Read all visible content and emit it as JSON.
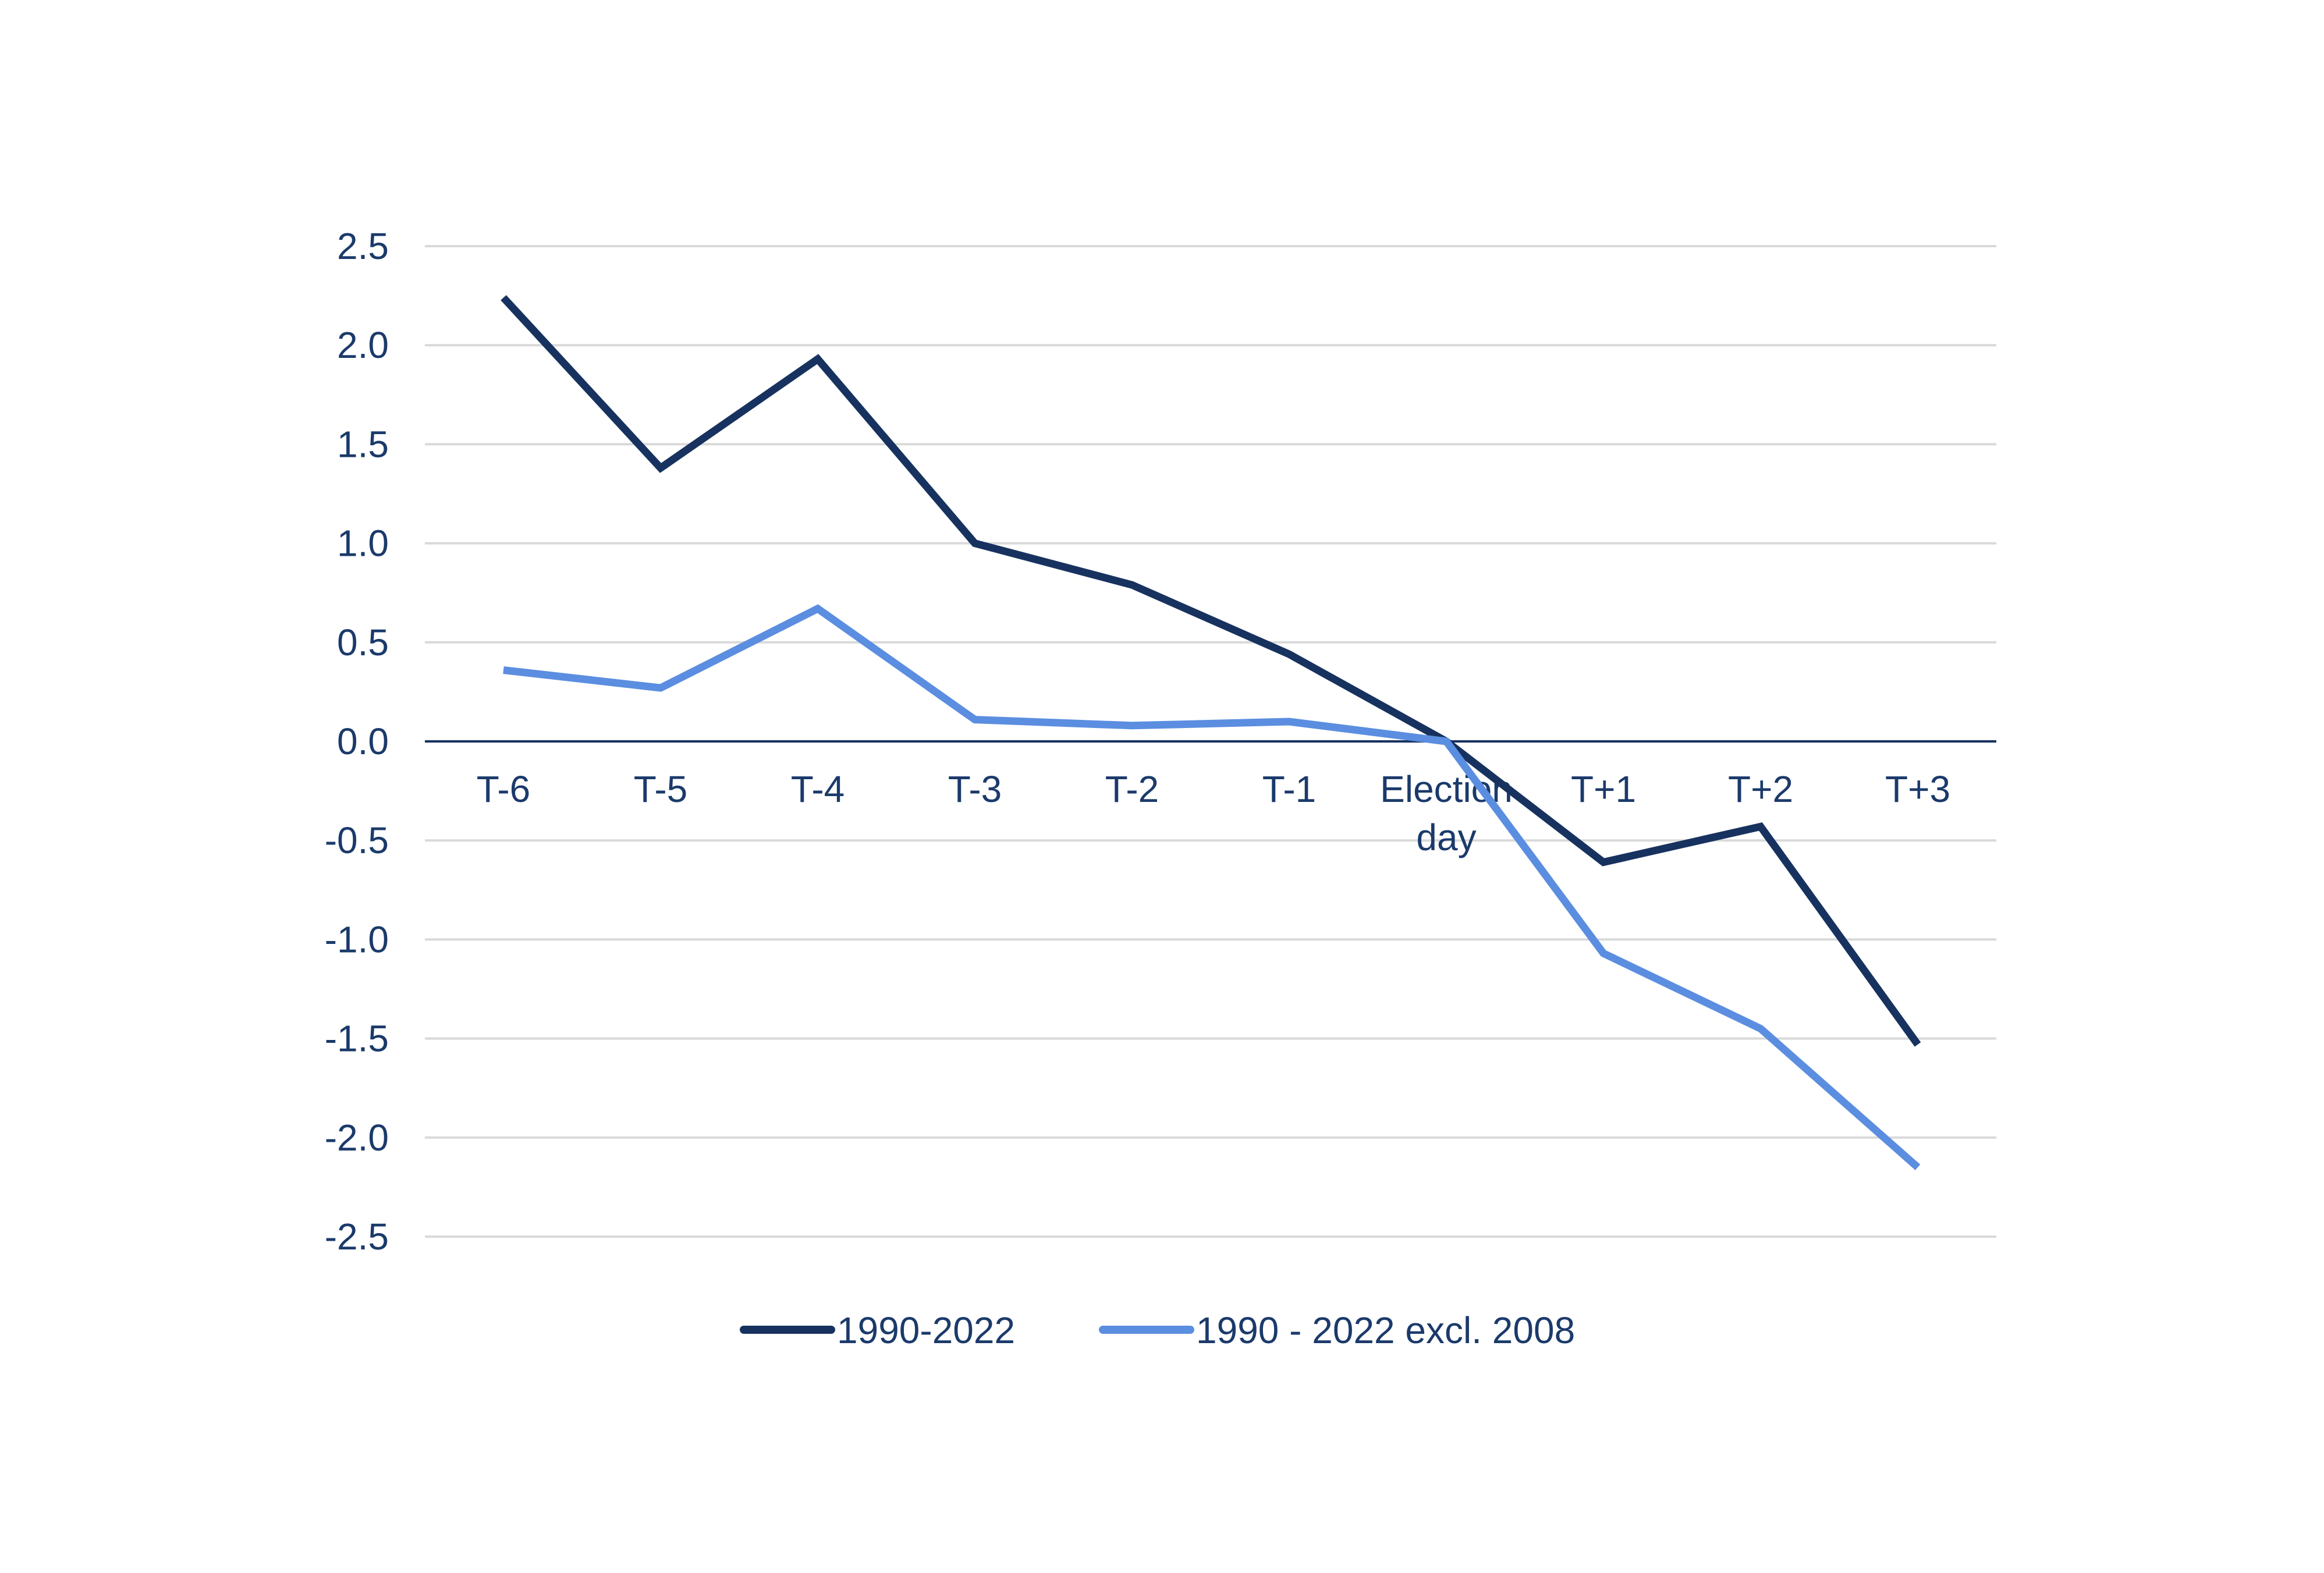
{
  "chart_data": {
    "type": "line",
    "title": "",
    "xlabel": "",
    "ylabel": "",
    "categories": [
      "T-6",
      "T-5",
      "T-4",
      "T-3",
      "T-2",
      "T-1",
      "Election day",
      "T+1",
      "T+2",
      "T+3"
    ],
    "category_lines": [
      [
        "T-6"
      ],
      [
        "T-5"
      ],
      [
        "T-4"
      ],
      [
        "T-3"
      ],
      [
        "T-2"
      ],
      [
        "T-1"
      ],
      [
        "Election",
        "day"
      ],
      [
        "T+1"
      ],
      [
        "T+2"
      ],
      [
        "T+3"
      ]
    ],
    "ylim": [
      -2.5,
      2.5
    ],
    "yticks": [
      2.5,
      2.0,
      1.5,
      1.0,
      0.5,
      0.0,
      -0.5,
      -1.0,
      -1.5,
      -2.0,
      -2.5
    ],
    "ytick_labels": [
      "2.5",
      "2.0",
      "1.5",
      "1.0",
      "0.5",
      "0.0",
      "-0.5",
      "-1.0",
      "-1.5",
      "-2.0",
      "-2.5"
    ],
    "grid": true,
    "legend_position": "bottom",
    "series": [
      {
        "name": "1990-2022",
        "color": "#17325f",
        "values": [
          2.24,
          1.38,
          1.93,
          1.0,
          0.79,
          0.44,
          0.0,
          -0.61,
          -0.43,
          -1.53
        ]
      },
      {
        "name": "1990 - 2022 excl. 2008",
        "color": "#5b8ee0",
        "values": [
          0.36,
          0.27,
          0.67,
          0.11,
          0.08,
          0.1,
          0.0,
          -1.07,
          -1.45,
          -2.15
        ]
      }
    ]
  }
}
